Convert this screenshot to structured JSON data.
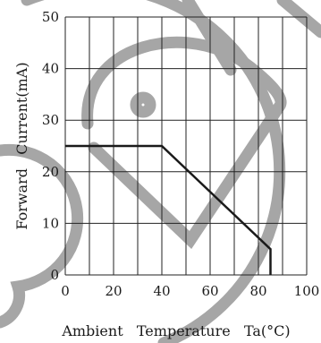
{
  "chart_data": {
    "type": "line",
    "xlabel": "Ambient   Temperature   Ta(°C)",
    "ylabel": "Forward   Current(mA)",
    "xlim": [
      0,
      100
    ],
    "ylim": [
      0,
      50
    ],
    "x_ticks": [
      "0",
      "20",
      "40",
      "60",
      "80",
      "100"
    ],
    "y_ticks": [
      "0",
      "10",
      "20",
      "30",
      "40",
      "50"
    ],
    "grid": true,
    "series": [
      {
        "x": [
          0,
          40,
          85,
          85
        ],
        "y": [
          25,
          25,
          5,
          0
        ]
      }
    ],
    "watermark": "©"
  },
  "colors": {
    "line": "#1a1a1a",
    "grid": "#222222",
    "watermark": "#a6a6a6"
  }
}
